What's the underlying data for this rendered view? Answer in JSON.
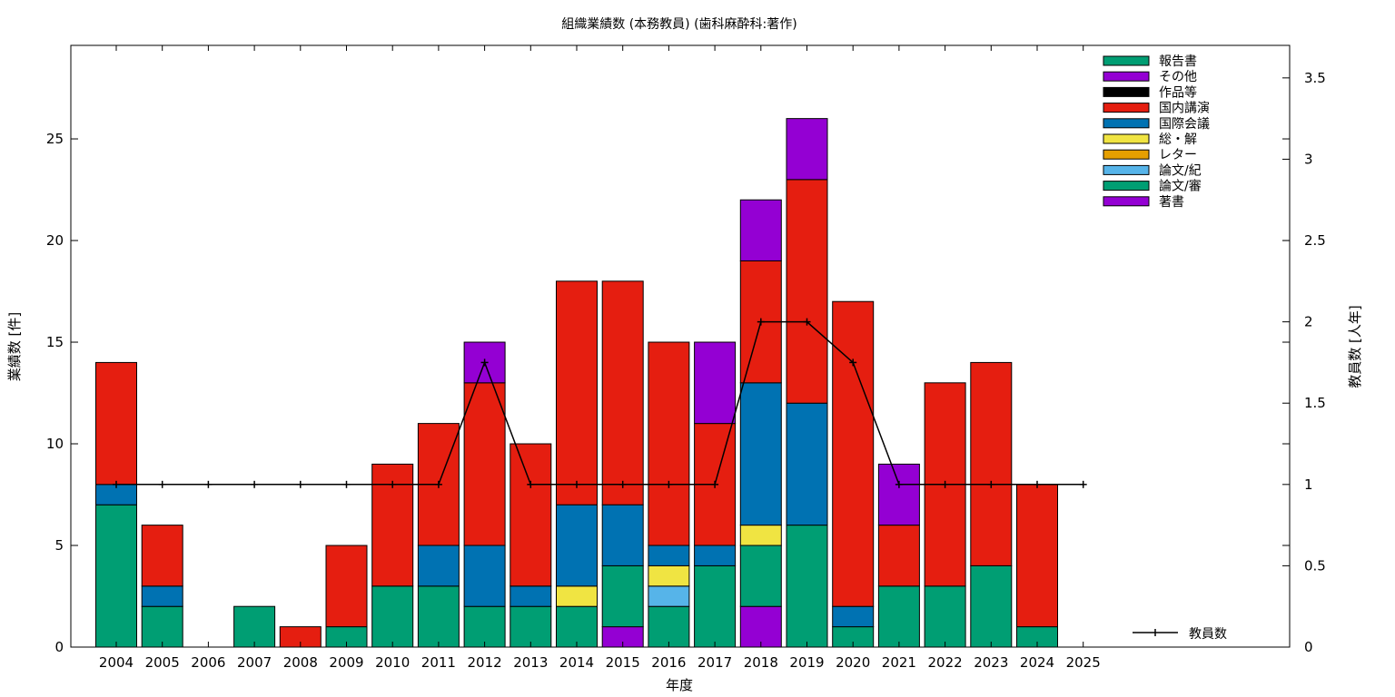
{
  "chart_data": {
    "type": "bar",
    "stacked": true,
    "title": "組織業績数 (本務教員) (歯科麻酔科:著作)",
    "xlabel": "年度",
    "ylabel": "業績数 [件]",
    "y2label": "教員数 [人年]",
    "ylim": [
      0,
      29.6
    ],
    "y2lim": [
      0,
      3.7
    ],
    "yticks": [
      0,
      5,
      10,
      15,
      20,
      25
    ],
    "y2ticks": [
      "0",
      "0.5",
      "1",
      "1.5",
      "2",
      "2.5",
      "3",
      "3.5"
    ],
    "grid": false,
    "legend_position": "top-right",
    "categories": [
      "2004",
      "2005",
      "2006",
      "2007",
      "2008",
      "2009",
      "2010",
      "2011",
      "2012",
      "2013",
      "2014",
      "2015",
      "2016",
      "2017",
      "2018",
      "2019",
      "2020",
      "2021",
      "2022",
      "2023",
      "2024",
      "2025"
    ],
    "series": [
      {
        "name": "著書",
        "color": "#9400d3",
        "values": [
          0,
          0,
          0,
          0,
          0,
          0,
          0,
          0,
          0,
          0,
          0,
          1,
          0,
          0,
          2,
          0,
          0,
          0,
          0,
          0,
          0,
          0
        ]
      },
      {
        "name": "論文/審",
        "color": "#009e73",
        "values": [
          7,
          2,
          0,
          2,
          0,
          1,
          3,
          3,
          2,
          2,
          2,
          3,
          2,
          4,
          3,
          6,
          1,
          3,
          3,
          4,
          1,
          0
        ]
      },
      {
        "name": "論文/紀",
        "color": "#56b4e9",
        "values": [
          0,
          0,
          0,
          0,
          0,
          0,
          0,
          0,
          0,
          0,
          0,
          0,
          1,
          0,
          0,
          0,
          0,
          0,
          0,
          0,
          0,
          0
        ]
      },
      {
        "name": "レター",
        "color": "#e69f00",
        "values": [
          0,
          0,
          0,
          0,
          0,
          0,
          0,
          0,
          0,
          0,
          0,
          0,
          0,
          0,
          0,
          0,
          0,
          0,
          0,
          0,
          0,
          0
        ]
      },
      {
        "name": "総・解",
        "color": "#f0e442",
        "values": [
          0,
          0,
          0,
          0,
          0,
          0,
          0,
          0,
          0,
          0,
          1,
          0,
          1,
          0,
          1,
          0,
          0,
          0,
          0,
          0,
          0,
          0
        ]
      },
      {
        "name": "国際会議",
        "color": "#0072b2",
        "values": [
          1,
          1,
          0,
          0,
          0,
          0,
          0,
          2,
          3,
          1,
          4,
          3,
          1,
          1,
          7,
          6,
          1,
          0,
          0,
          0,
          0,
          0
        ]
      },
      {
        "name": "国内講演",
        "color": "#e51e10",
        "values": [
          6,
          3,
          0,
          0,
          1,
          4,
          6,
          6,
          8,
          7,
          11,
          11,
          10,
          6,
          6,
          11,
          15,
          3,
          10,
          10,
          7,
          0
        ]
      },
      {
        "name": "作品等",
        "color": "#000000",
        "values": [
          0,
          0,
          0,
          0,
          0,
          0,
          0,
          0,
          0,
          0,
          0,
          0,
          0,
          0,
          0,
          0,
          0,
          0,
          0,
          0,
          0,
          0
        ]
      },
      {
        "name": "その他",
        "color": "#9400d3",
        "values": [
          0,
          0,
          0,
          0,
          0,
          0,
          0,
          0,
          2,
          0,
          0,
          0,
          0,
          4,
          3,
          3,
          0,
          3,
          0,
          0,
          0,
          0
        ]
      },
      {
        "name": "報告書",
        "color": "#009e73",
        "values": [
          0,
          0,
          0,
          0,
          0,
          0,
          0,
          0,
          0,
          0,
          0,
          0,
          0,
          0,
          0,
          0,
          0,
          0,
          0,
          0,
          0,
          0
        ]
      }
    ],
    "line": {
      "name": "教員数",
      "axis": "y2",
      "color": "#000000",
      "values": [
        1,
        1,
        1,
        1,
        1,
        1,
        1,
        1,
        1.75,
        1,
        1,
        1,
        1,
        1,
        2,
        2,
        1.75,
        1,
        1,
        1,
        1,
        1
      ]
    }
  }
}
